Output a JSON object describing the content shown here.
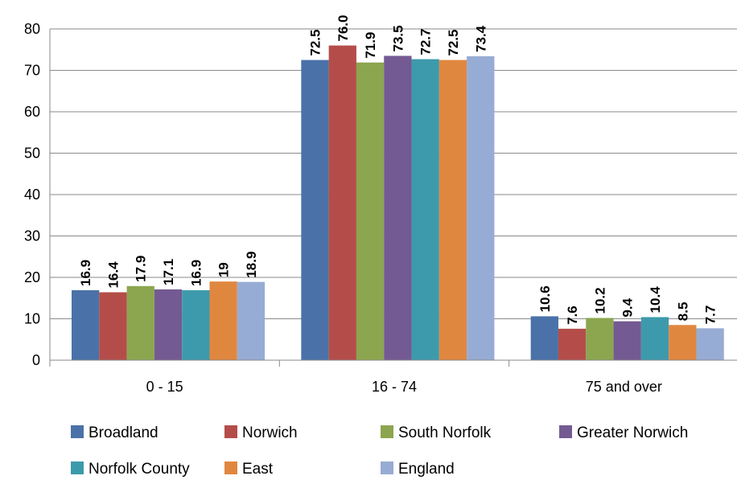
{
  "chart_data": {
    "type": "bar",
    "categories": [
      "0 - 15",
      "16 - 74",
      "75 and over"
    ],
    "series": [
      {
        "name": "Broadland",
        "color": "#4a72a8",
        "values": [
          16.9,
          72.5,
          10.6
        ],
        "labels": [
          "16.9",
          "72.5",
          "10.6"
        ]
      },
      {
        "name": "Norwich",
        "color": "#b44d4a",
        "values": [
          16.4,
          76.0,
          7.6
        ],
        "labels": [
          "16.4",
          "76.0",
          "7.6"
        ]
      },
      {
        "name": "South Norfolk",
        "color": "#8ca64f",
        "values": [
          17.9,
          71.9,
          10.2
        ],
        "labels": [
          "17.9",
          "71.9",
          "10.2"
        ]
      },
      {
        "name": "Greater Norwich",
        "color": "#745a92",
        "values": [
          17.1,
          73.5,
          9.4
        ],
        "labels": [
          "17.1",
          "73.5",
          "9.4"
        ]
      },
      {
        "name": "Norfolk County",
        "color": "#3d9aac",
        "values": [
          16.9,
          72.7,
          10.4
        ],
        "labels": [
          "16.9",
          "72.7",
          "10.4"
        ]
      },
      {
        "name": "East",
        "color": "#e0873f",
        "values": [
          19,
          72.5,
          8.5
        ],
        "labels": [
          "19",
          "72.5",
          "8.5"
        ]
      },
      {
        "name": "England",
        "color": "#97acd4",
        "values": [
          18.9,
          73.4,
          7.7
        ],
        "labels": [
          "18.9",
          "73.4",
          "7.7"
        ]
      }
    ],
    "ylim": [
      0,
      80
    ],
    "yticks": [
      0,
      10,
      20,
      30,
      40,
      50,
      60,
      70,
      80
    ],
    "grid": true,
    "legend": "bottom"
  }
}
